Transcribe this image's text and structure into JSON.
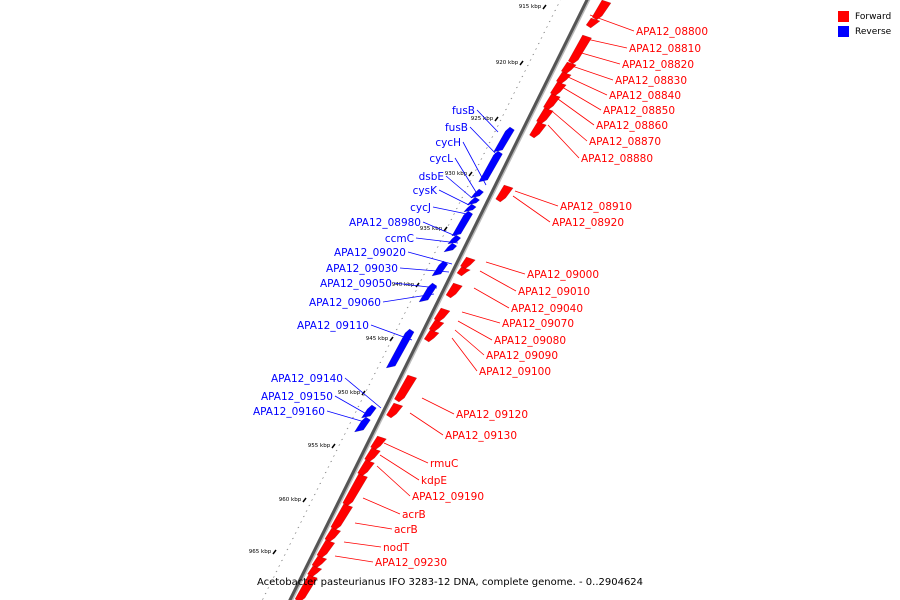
{
  "colors": {
    "forward": "#ff0000",
    "reverse": "#0000ff",
    "backbone": "#888888"
  },
  "legend": [
    {
      "label": "Forward",
      "color": "#ff0000"
    },
    {
      "label": "Reverse",
      "color": "#0000ff"
    }
  ],
  "caption": "Acetobacter pasteurianus IFO 3283-12 DNA, complete genome. - 0..2904624",
  "ticks": [
    "915 kbp",
    "920 kbp",
    "925 kbp",
    "930 kbp",
    "935 kbp",
    "940 kbp",
    "945 kbp",
    "950 kbp",
    "955 kbp",
    "960 kbp",
    "965 kbp"
  ],
  "forward_labels": [
    "APA12_08800",
    "APA12_08810",
    "APA12_08820",
    "APA12_08830",
    "APA12_08840",
    "APA12_08850",
    "APA12_08860",
    "APA12_08870",
    "APA12_08880",
    "APA12_08910",
    "APA12_08920",
    "APA12_09000",
    "APA12_09010",
    "APA12_09040",
    "APA12_09070",
    "APA12_09080",
    "APA12_09090",
    "APA12_09100",
    "APA12_09120",
    "APA12_09130",
    "rmuC",
    "kdpE",
    "APA12_09190",
    "acrB",
    "acrB",
    "nodT",
    "APA12_09230"
  ],
  "reverse_labels": [
    "fusB",
    "fusB",
    "cycH",
    "cycL",
    "dsbE",
    "cysK",
    "cycJ",
    "APA12_08980",
    "ccmC",
    "APA12_09020",
    "APA12_09030",
    "APA12_09050",
    "APA12_09060",
    "APA12_09110",
    "APA12_09140",
    "APA12_09150",
    "APA12_09160"
  ]
}
